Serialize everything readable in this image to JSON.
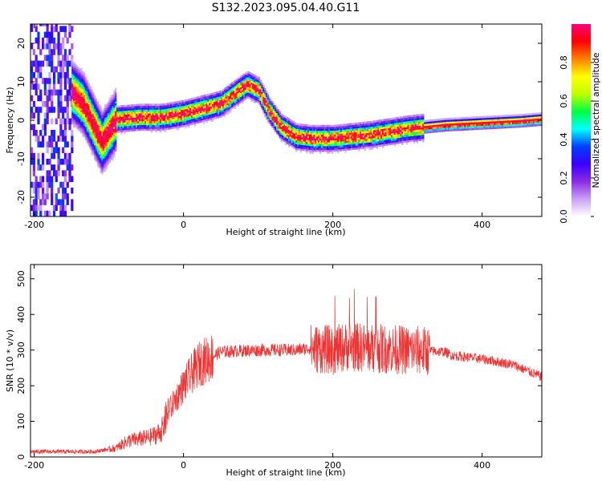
{
  "figure_title": "S132.2023.095.04.40.G11",
  "chart_data": [
    {
      "type": "heatmap",
      "name": "spectrogram",
      "xlabel": "Height of straight line (km)",
      "ylabel": "Frequency (Hz)",
      "xlim": [
        -205,
        480
      ],
      "ylim": [
        -25,
        25
      ],
      "x_ticks": [
        -200,
        0,
        200,
        400
      ],
      "y_ticks": [
        -20,
        -10,
        0,
        10,
        20
      ],
      "colorbar": {
        "label": "Normalized spectral amplitude",
        "range": [
          0,
          1
        ],
        "ticks": [
          "0.0",
          "0.2",
          "0.4",
          "0.6",
          "0.8"
        ],
        "colors": [
          "#ffffff",
          "#c8a0f8",
          "#8a2be2",
          "#3a00ff",
          "#0040ff",
          "#00ffff",
          "#00ff40",
          "#c0ff00",
          "#ffff00",
          "#ff8000",
          "#ff0000",
          "#ff0080"
        ]
      },
      "ridge": {
        "x": [
          -150,
          -135,
          -120,
          -110,
          -100,
          -90,
          -60,
          -30,
          0,
          30,
          50,
          70,
          85,
          100,
          115,
          130,
          150,
          170,
          200,
          250,
          300,
          350,
          400,
          450,
          480
        ],
        "frequency": [
          7,
          4,
          -2,
          -6,
          -3,
          0,
          0.5,
          0.5,
          1.5,
          3,
          4,
          7,
          9,
          7.5,
          2,
          -2,
          -4.5,
          -5,
          -5,
          -4,
          -2.5,
          -1.5,
          -1,
          -0.5,
          0
        ]
      }
    },
    {
      "type": "line",
      "name": "snr",
      "xlabel": "Height of straight line (km)",
      "ylabel": "SNR (10 * v/v)",
      "xlim": [
        -205,
        480
      ],
      "ylim": [
        0,
        540
      ],
      "x_ticks": [
        -200,
        0,
        200,
        400
      ],
      "y_ticks": [
        0,
        100,
        200,
        300,
        400,
        500
      ],
      "color": "#ee3333",
      "envelope": {
        "x": [
          -205,
          -160,
          -120,
          -90,
          -75,
          -60,
          -45,
          -30,
          -20,
          0,
          20,
          50,
          100,
          150,
          170,
          200,
          220,
          250,
          300,
          350,
          360,
          400,
          440,
          480
        ],
        "snr": [
          15,
          15,
          15,
          25,
          45,
          50,
          55,
          70,
          130,
          200,
          260,
          295,
          300,
          300,
          305,
          300,
          310,
          305,
          300,
          295,
          285,
          275,
          260,
          225
        ]
      }
    }
  ]
}
